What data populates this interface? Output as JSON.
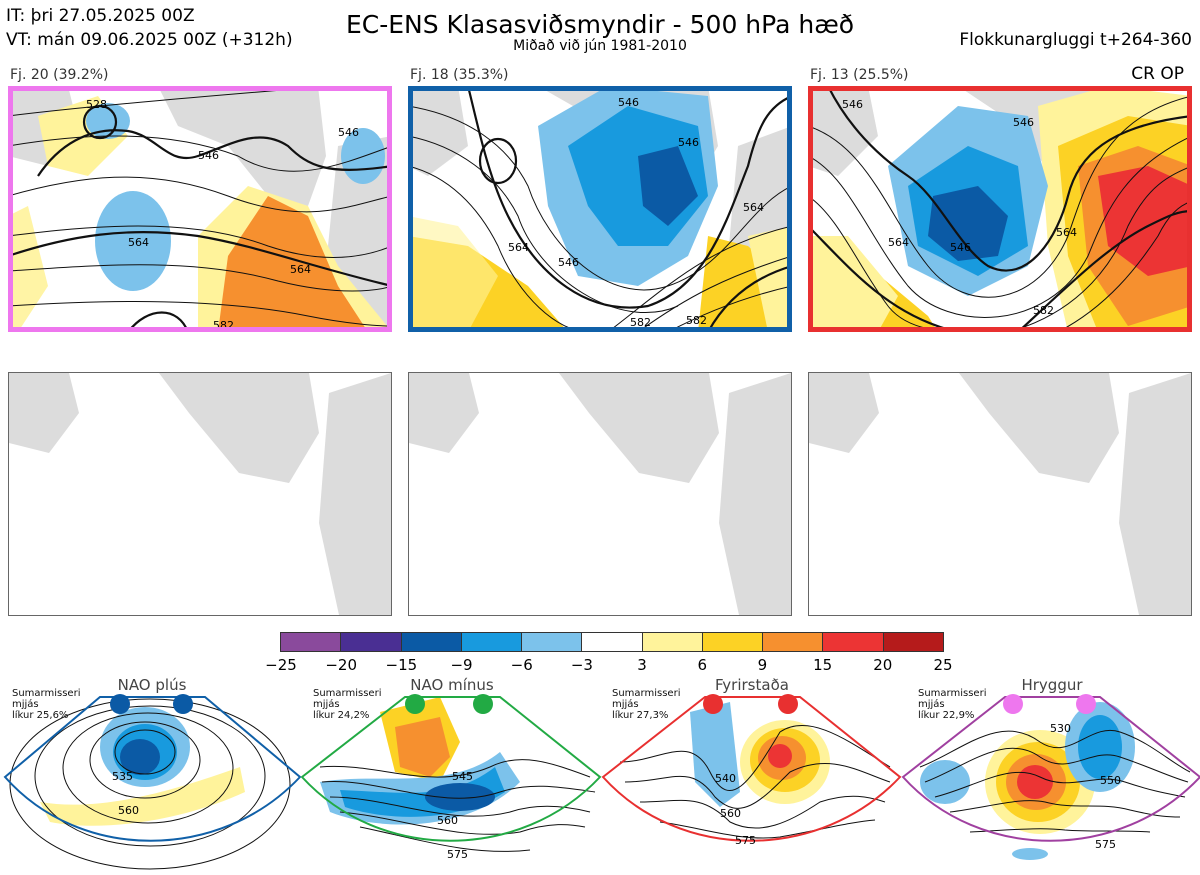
{
  "header": {
    "it_line": "IT: þri 27.05.2025 00Z",
    "vt_line": "VT: mán 09.06.2025 00Z  (+312h)",
    "title": "EC-ENS Klasasviðsmyndir - 500 hPa hæð",
    "subtitle": "Miðað við jún 1981-2010",
    "window": "Flokkunargluggi t+264-360"
  },
  "clusters": [
    {
      "label": "Fj. 20 (39.2%)",
      "frame_color": "#ee77ee",
      "contour_labels": [
        "528",
        "546",
        "546",
        "564",
        "564",
        "582"
      ]
    },
    {
      "label": "Fj. 18 (35.3%)",
      "frame_color": "#1060a8",
      "contour_labels": [
        "546",
        "546",
        "564",
        "564",
        "546",
        "582",
        "582"
      ]
    },
    {
      "label": "Fj. 13 (25.5%)",
      "frame_color": "#e83030",
      "contour_labels": [
        "546",
        "546",
        "546",
        "564",
        "564",
        "582"
      ]
    }
  ],
  "cr_op": "CR OP",
  "colorbar": {
    "ticks": [
      "−25",
      "−20",
      "−15",
      "−9",
      "−6",
      "−3",
      "3",
      "6",
      "9",
      "15",
      "20",
      "25"
    ],
    "colors": [
      "#8a4a9c",
      "#4a2f93",
      "#0b5aa5",
      "#189ade",
      "#7cc2eb",
      "#ffffff",
      "#fff39b",
      "#fcd225",
      "#f6902f",
      "#ec3434",
      "#b51b1b"
    ]
  },
  "regimes": [
    {
      "title": "NAO plús",
      "note": [
        "Sumarmisseri",
        "mjjás",
        "líkur 25,6%"
      ],
      "dot_color": "#0b5aa5",
      "frame_color": "#1060a8",
      "contour_labels": [
        "535",
        "560"
      ]
    },
    {
      "title": "NAO mínus",
      "note": [
        "Sumarmisseri",
        "mjjás",
        "líkur 24,2%"
      ],
      "dot_color": "#22aa44",
      "frame_color": "#22aa44",
      "contour_labels": [
        "545",
        "560",
        "575"
      ]
    },
    {
      "title": "Fyrirstaða",
      "note": [
        "Sumarmisseri",
        "mjjás",
        "líkur 27,3%"
      ],
      "dot_color": "#e83030",
      "frame_color": "#e83030",
      "contour_labels": [
        "540",
        "560",
        "575"
      ]
    },
    {
      "title": "Hryggur",
      "note": [
        "Sumarmisseri",
        "mjjás",
        "líkur 22,9%"
      ],
      "dot_color": "#ee77ee",
      "frame_color": "#a040a0",
      "contour_labels": [
        "530",
        "550",
        "575"
      ]
    }
  ]
}
